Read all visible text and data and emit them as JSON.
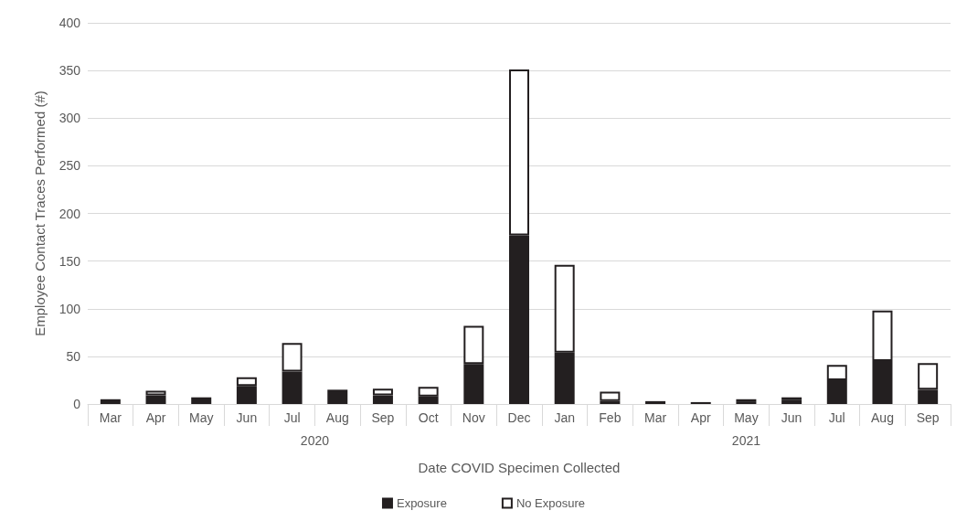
{
  "chart_data": {
    "type": "bar",
    "stacked": true,
    "xlabel": "Date COVID Specimen Collected",
    "ylabel": "Employee Contact Traces Performed (#)",
    "categories": [
      "Mar",
      "Apr",
      "May",
      "Jun",
      "Jul",
      "Aug",
      "Sep",
      "Oct",
      "Nov",
      "Dec",
      "Jan",
      "Feb",
      "Mar",
      "Apr",
      "May",
      "Jun",
      "Jul",
      "Aug",
      "Sep"
    ],
    "series": [
      {
        "name": "Exposure",
        "color": "#231f20",
        "values": [
          5,
          9,
          7,
          19,
          34,
          15,
          9,
          8,
          42,
          177,
          54,
          3,
          3,
          2,
          2,
          4,
          25,
          45,
          15
        ]
      },
      {
        "name": "No Exposure",
        "color": "#ffffff",
        "values": [
          0,
          5,
          0,
          9,
          30,
          0,
          7,
          10,
          40,
          174,
          92,
          10,
          0,
          0,
          3,
          3,
          16,
          53,
          28
        ]
      }
    ],
    "annotations": [
      "2020",
      "2021"
    ],
    "ylim": [
      0,
      400
    ],
    "yticks": [
      0,
      50,
      100,
      150,
      200,
      250,
      300,
      350,
      400
    ],
    "grid": "y",
    "legend": "bottom"
  }
}
